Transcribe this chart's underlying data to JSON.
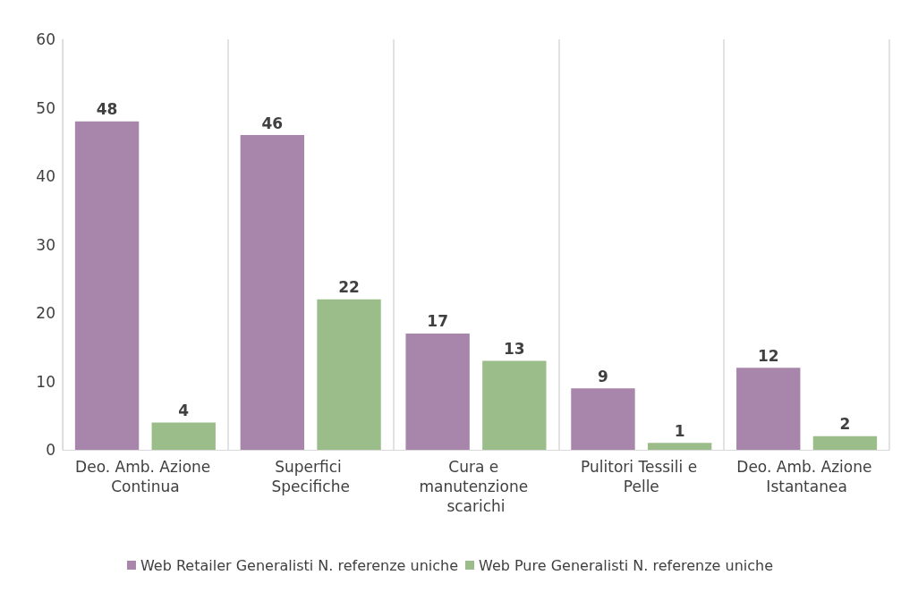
{
  "chart_data": {
    "type": "bar",
    "categories": [
      "Deo. Amb. Azione Continua",
      "Superfici Specifiche",
      "Cura e manutenzione scarichi",
      "Pulitori Tessili e Pelle",
      "Deo. Amb. Azione Istantanea"
    ],
    "series": [
      {
        "name": "Web Retailer Generalisti N. referenze uniche",
        "color": "#a886ab",
        "values": [
          48,
          46,
          17,
          9,
          12
        ]
      },
      {
        "name": "Web Pure Generalisti N. referenze uniche",
        "color": "#9bbd89",
        "values": [
          4,
          22,
          13,
          1,
          2
        ]
      }
    ],
    "ylim": [
      0,
      60
    ],
    "yticks": [
      0,
      10,
      20,
      30,
      40,
      50,
      60
    ],
    "grid": "x",
    "legend": "bottom",
    "data_labels": true
  }
}
